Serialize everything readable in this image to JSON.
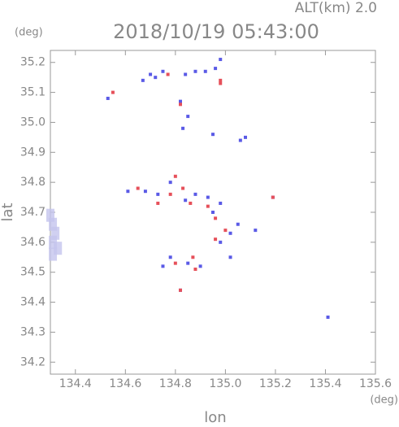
{
  "chart_data": {
    "type": "scatter",
    "title": "2018/10/19 05:43:00",
    "annotations": [
      "ALT(km) 2.0",
      "(deg)",
      "(deg)"
    ],
    "x_label": "lon",
    "y_label": "lat",
    "xlim": [
      134.3,
      135.6
    ],
    "ylim": [
      34.16,
      35.24
    ],
    "xticks": [
      134.4,
      134.6,
      134.8,
      {
        "value": 135,
        "label": "135.0"
      },
      135.2,
      135.4,
      135.6
    ],
    "yticks": [
      34.2,
      34.3,
      34.4,
      34.5,
      34.6,
      34.7,
      34.8,
      34.9,
      {
        "value": 35,
        "label": "35.0"
      },
      35.1,
      35.2
    ],
    "series": [
      {
        "color": "#5a5ae6",
        "x": [
          134.98,
          134.96,
          134.92,
          134.88,
          134.84,
          134.75,
          134.72,
          134.7,
          134.67,
          134.53,
          134.85,
          134.82,
          134.83,
          135.08,
          135.06,
          134.95,
          135.19,
          135.41,
          134.61,
          134.68,
          134.73,
          134.78,
          134.84,
          134.88,
          134.93,
          134.98,
          135.05,
          135.02,
          134.98,
          135.02,
          134.75,
          134.78,
          134.85,
          134.9,
          134.82,
          134.95,
          135.12
        ],
        "y": [
          35.21,
          35.18,
          35.17,
          35.17,
          35.16,
          35.17,
          35.15,
          35.16,
          35.14,
          35.08,
          35.02,
          35.07,
          34.98,
          34.95,
          34.94,
          34.96,
          34.75,
          34.35,
          34.77,
          34.77,
          34.76,
          34.8,
          34.74,
          34.76,
          34.75,
          34.73,
          34.66,
          34.63,
          34.6,
          34.55,
          34.52,
          34.55,
          34.53,
          34.52,
          34.44,
          34.7,
          34.64
        ]
      },
      {
        "color": "#e6505a",
        "x": [
          134.98,
          134.98,
          134.77,
          134.82,
          134.55,
          134.8,
          134.83,
          134.78,
          134.93,
          134.86,
          134.96,
          135.0,
          134.96,
          134.87,
          134.88,
          134.8,
          134.82,
          135.19,
          134.65,
          134.73
        ],
        "y": [
          35.14,
          35.13,
          35.16,
          35.06,
          35.1,
          34.82,
          34.78,
          34.76,
          34.72,
          34.73,
          34.68,
          34.64,
          34.61,
          34.55,
          34.51,
          34.53,
          34.44,
          34.75,
          34.78,
          34.73
        ]
      },
      {
        "color": "#c4c4ee",
        "x": [
          134.31,
          134.32,
          134.31,
          134.33,
          134.3,
          134.31
        ],
        "y": [
          34.6,
          34.63,
          34.66,
          34.58,
          34.69,
          34.56
        ]
      }
    ]
  }
}
